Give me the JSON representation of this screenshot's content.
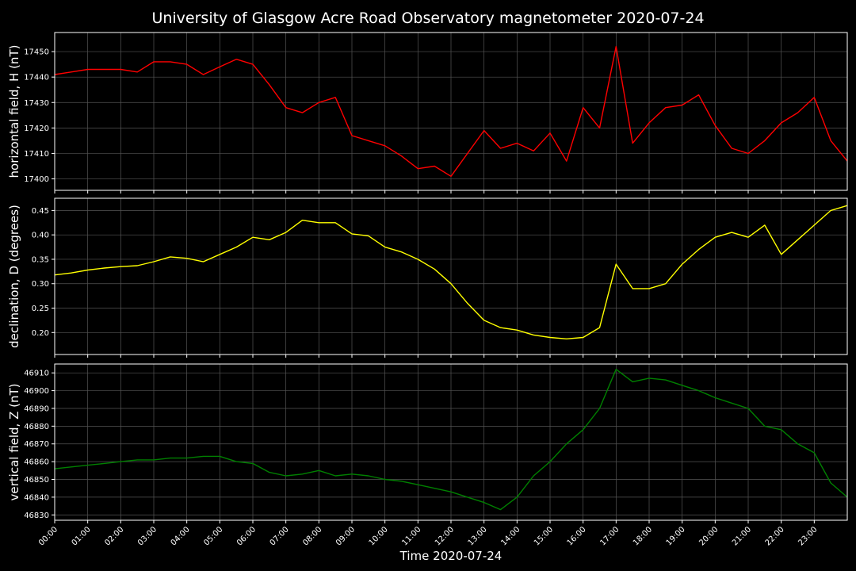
{
  "chart_data": {
    "title": "University of Glasgow Acre Road Observatory magnetometer 2020-07-24",
    "xlabel": "Time 2020-07-24",
    "type": "line",
    "xlim": [
      0,
      24
    ],
    "x_ticks": [
      "00:00",
      "01:00",
      "02:00",
      "03:00",
      "04:00",
      "05:00",
      "06:00",
      "07:00",
      "08:00",
      "09:00",
      "10:00",
      "11:00",
      "12:00",
      "13:00",
      "14:00",
      "15:00",
      "16:00",
      "17:00",
      "18:00",
      "19:00",
      "20:00",
      "21:00",
      "22:00",
      "23:00"
    ],
    "grid": true,
    "panels": [
      {
        "ylabel": "horizontal field, H (nT)",
        "color": "#ff0000",
        "ylim": [
          17395.5,
          17457.5
        ],
        "y_ticks": [
          17400,
          17410,
          17420,
          17430,
          17440,
          17450
        ],
        "tick_decimals": 0,
        "x": [
          0,
          0.5,
          1,
          1.5,
          2,
          2.5,
          3,
          3.5,
          4,
          4.5,
          5,
          5.5,
          6,
          6.5,
          7,
          7.5,
          8,
          8.5,
          9,
          9.5,
          10,
          10.5,
          11,
          11.5,
          12,
          12.5,
          13,
          13.5,
          14,
          14.5,
          15,
          15.5,
          16,
          16.5,
          17,
          17.5,
          18,
          18.5,
          19,
          19.5,
          20,
          20.5,
          21,
          21.5,
          22,
          22.5,
          23,
          23.5,
          24
        ],
        "values": [
          17441,
          17442,
          17443,
          17443,
          17443,
          17442,
          17446,
          17446,
          17445,
          17441,
          17444,
          17447,
          17445,
          17437,
          17428,
          17426,
          17430,
          17432,
          17417,
          17415,
          17413,
          17409,
          17404,
          17405,
          17401,
          17410,
          17419,
          17412,
          17414,
          17411,
          17418,
          17407,
          17428,
          17420,
          17452,
          17414,
          17422,
          17428,
          17429,
          17433,
          17421,
          17412,
          17410,
          17415,
          17422,
          17426,
          17432,
          17415,
          17407
        ]
      },
      {
        "ylabel": "declination, D (degrees)",
        "color": "#ffff00",
        "ylim": [
          0.155,
          0.475
        ],
        "y_ticks": [
          0.2,
          0.25,
          0.3,
          0.35,
          0.4,
          0.45
        ],
        "tick_decimals": 2,
        "x": [
          0,
          0.5,
          1,
          1.5,
          2,
          2.5,
          3,
          3.5,
          4,
          4.5,
          5,
          5.5,
          6,
          6.5,
          7,
          7.5,
          8,
          8.5,
          9,
          9.5,
          10,
          10.5,
          11,
          11.5,
          12,
          12.5,
          13,
          13.5,
          14,
          14.5,
          15,
          15.5,
          16,
          16.5,
          17,
          17.5,
          18,
          18.5,
          19,
          19.5,
          20,
          20.5,
          21,
          21.5,
          22,
          22.5,
          23,
          23.5,
          24
        ],
        "values": [
          0.318,
          0.322,
          0.328,
          0.332,
          0.335,
          0.337,
          0.345,
          0.355,
          0.352,
          0.345,
          0.36,
          0.375,
          0.395,
          0.39,
          0.405,
          0.43,
          0.425,
          0.425,
          0.402,
          0.398,
          0.375,
          0.365,
          0.35,
          0.33,
          0.3,
          0.26,
          0.225,
          0.21,
          0.205,
          0.195,
          0.19,
          0.187,
          0.19,
          0.21,
          0.34,
          0.29,
          0.29,
          0.3,
          0.34,
          0.37,
          0.395,
          0.405,
          0.395,
          0.42,
          0.36,
          0.39,
          0.42,
          0.45,
          0.46
        ]
      },
      {
        "ylabel": "vertical field, Z (nT)",
        "color": "#008000",
        "ylim": [
          46827,
          46915
        ],
        "y_ticks": [
          46830,
          46840,
          46850,
          46860,
          46870,
          46880,
          46890,
          46900,
          46910
        ],
        "tick_decimals": 0,
        "x": [
          0,
          0.5,
          1,
          1.5,
          2,
          2.5,
          3,
          3.5,
          4,
          4.5,
          5,
          5.5,
          6,
          6.5,
          7,
          7.5,
          8,
          8.5,
          9,
          9.5,
          10,
          10.5,
          11,
          11.5,
          12,
          12.5,
          13,
          13.5,
          14,
          14.5,
          15,
          15.5,
          16,
          16.5,
          17,
          17.5,
          18,
          18.5,
          19,
          19.5,
          20,
          20.5,
          21,
          21.5,
          22,
          22.5,
          23,
          23.5,
          24
        ],
        "values": [
          46856,
          46857,
          46858,
          46859,
          46860,
          46861,
          46861,
          46862,
          46862,
          46863,
          46863,
          46860,
          46859,
          46854,
          46852,
          46853,
          46855,
          46852,
          46853,
          46852,
          46850,
          46849,
          46847,
          46845,
          46843,
          46840,
          46837,
          46833,
          46840,
          46852,
          46860,
          46870,
          46878,
          46890,
          46912,
          46905,
          46907,
          46906,
          46903,
          46900,
          46896,
          46893,
          46890,
          46880,
          46878,
          46870,
          46865,
          46848,
          46840
        ]
      }
    ]
  }
}
